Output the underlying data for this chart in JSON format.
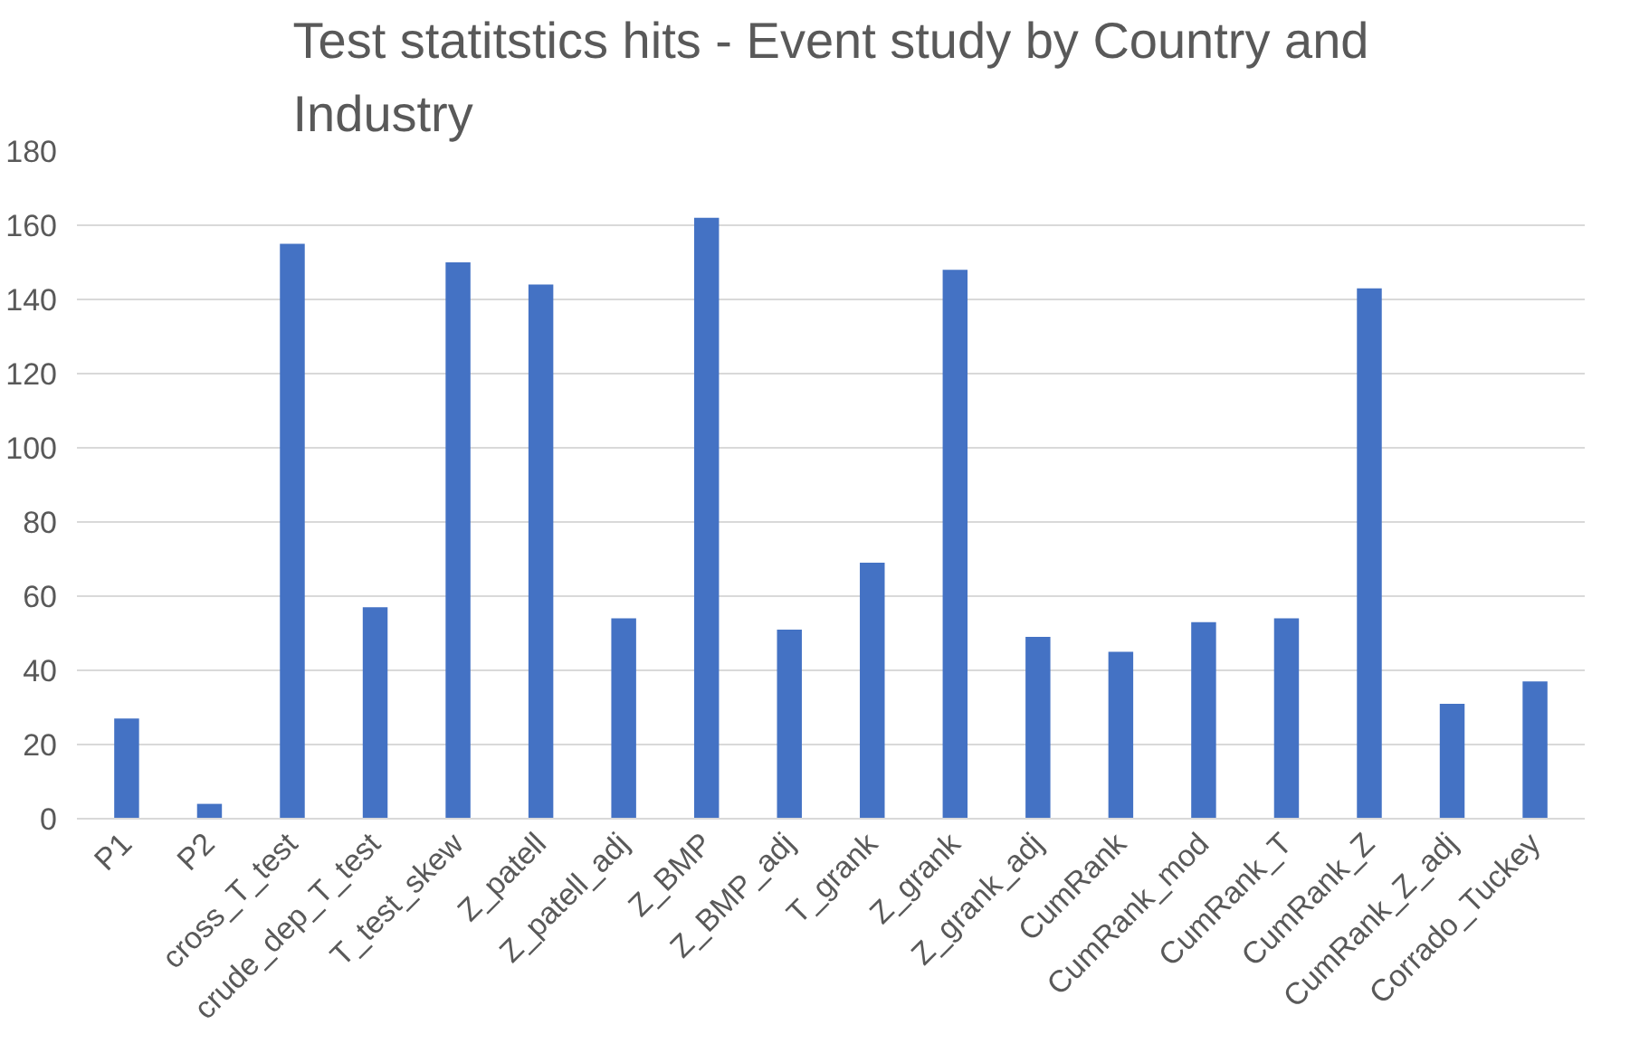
{
  "chart_data": {
    "type": "bar",
    "title": "Test statitstics hits - Event study by Country and Industry",
    "categories": [
      "P1",
      "P2",
      "cross_T_test",
      "crude_dep_T_test",
      "T_test_skew",
      "Z_patell",
      "Z_patell_adj",
      "Z_BMP",
      "Z_BMP_adj",
      "T_grank",
      "Z_grank",
      "Z_grank_adj",
      "CumRank",
      "CumRank_mod",
      "CumRank_T",
      "CumRank_Z",
      "CumRank_Z_adj",
      "Corrado_Tuckey"
    ],
    "values": [
      27,
      4,
      155,
      57,
      150,
      144,
      54,
      162,
      51,
      69,
      148,
      49,
      45,
      53,
      54,
      143,
      31,
      37
    ],
    "color": "#4472c4",
    "ylim": [
      0,
      180
    ],
    "yticks": [
      0,
      20,
      40,
      60,
      80,
      100,
      120,
      140,
      160,
      180
    ],
    "grid": "y"
  }
}
